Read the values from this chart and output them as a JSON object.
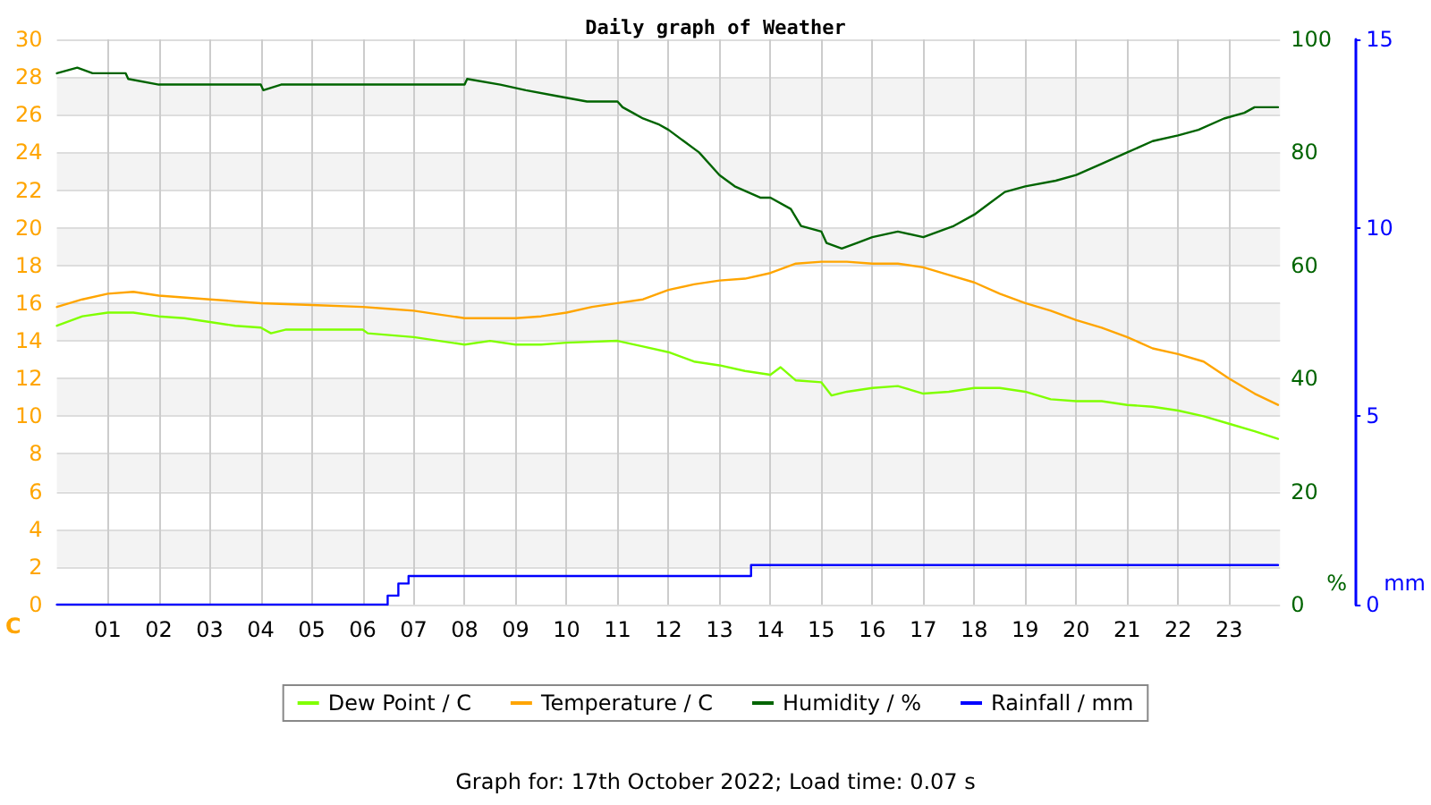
{
  "chart_data": {
    "type": "line",
    "title": "Daily graph of Weather",
    "ylabel": "C",
    "y2label": "%",
    "y3label": "mm",
    "annotations": [
      "Graph for: 17th October 2022; Load time: 0.07 s"
    ],
    "xlim": [
      0,
      24
    ],
    "xticks": [
      {
        "value": 1,
        "label": "01"
      },
      {
        "value": 2,
        "label": "02"
      },
      {
        "value": 3,
        "label": "03"
      },
      {
        "value": 4,
        "label": "04"
      },
      {
        "value": 5,
        "label": "05"
      },
      {
        "value": 6,
        "label": "06"
      },
      {
        "value": 7,
        "label": "07"
      },
      {
        "value": 8,
        "label": "08"
      },
      {
        "value": 9,
        "label": "09"
      },
      {
        "value": 10,
        "label": "10"
      },
      {
        "value": 11,
        "label": "11"
      },
      {
        "value": 12,
        "label": "12"
      },
      {
        "value": 13,
        "label": "13"
      },
      {
        "value": 14,
        "label": "14"
      },
      {
        "value": 15,
        "label": "15"
      },
      {
        "value": 16,
        "label": "16"
      },
      {
        "value": 17,
        "label": "17"
      },
      {
        "value": 18,
        "label": "18"
      },
      {
        "value": 19,
        "label": "19"
      },
      {
        "value": 20,
        "label": "20"
      },
      {
        "value": 21,
        "label": "21"
      },
      {
        "value": 22,
        "label": "22"
      },
      {
        "value": 23,
        "label": "23"
      }
    ],
    "ylim": [
      0,
      30
    ],
    "yticks": [
      0,
      2,
      4,
      6,
      8,
      10,
      12,
      14,
      16,
      18,
      20,
      22,
      24,
      26,
      28,
      30
    ],
    "y2lim": [
      0,
      100
    ],
    "y2ticks": [
      0,
      20,
      40,
      60,
      80,
      100
    ],
    "y3lim": [
      0,
      15
    ],
    "y3ticks": [
      0,
      5,
      10,
      15
    ],
    "grid": true,
    "legend": "bottom",
    "marker": "none",
    "line_style": "solid",
    "series": [
      {
        "name": "Dew Point / C",
        "color": "#80ff00",
        "x": [
          0,
          0.5,
          1,
          1.5,
          2,
          2.5,
          3,
          3.5,
          4,
          4.2,
          4.5,
          5,
          6,
          6.1,
          7,
          7.5,
          8,
          8.5,
          9,
          9.5,
          10,
          11,
          11.5,
          12,
          12.5,
          13,
          13.5,
          14,
          14.2,
          14.5,
          15,
          15.2,
          15.5,
          16,
          16.5,
          17,
          17.5,
          18,
          18.5,
          19,
          19.5,
          20,
          20.5,
          21,
          21.5,
          22,
          22.5,
          23,
          23.5,
          23.96
        ],
        "values": [
          14.8,
          15.3,
          15.5,
          15.5,
          15.3,
          15.2,
          15.0,
          14.8,
          14.7,
          14.4,
          14.6,
          14.6,
          14.6,
          14.4,
          14.2,
          14.0,
          13.8,
          14.0,
          13.8,
          13.8,
          13.9,
          14.0,
          13.7,
          13.4,
          12.9,
          12.7,
          12.4,
          12.2,
          12.6,
          11.9,
          11.8,
          11.1,
          11.3,
          11.5,
          11.6,
          11.2,
          11.3,
          11.5,
          11.5,
          11.3,
          10.9,
          10.8,
          10.8,
          10.6,
          10.5,
          10.3,
          10.0,
          9.6,
          9.2,
          8.8
        ]
      },
      {
        "name": "Temperature / C",
        "color": "#ffa500",
        "x": [
          0,
          0.5,
          1,
          1.5,
          2,
          3,
          3.5,
          4,
          5,
          6,
          6.5,
          7,
          7.5,
          8,
          8.5,
          9,
          9.5,
          10,
          10.5,
          11,
          11.5,
          12,
          12.5,
          13,
          13.5,
          14,
          14.5,
          15,
          15.5,
          16,
          16.5,
          17,
          17.5,
          18,
          18.5,
          19,
          19.5,
          20,
          20.5,
          21,
          21.5,
          22,
          22.5,
          23,
          23.5,
          23.96
        ],
        "values": [
          15.8,
          16.2,
          16.5,
          16.6,
          16.4,
          16.2,
          16.1,
          16.0,
          15.9,
          15.8,
          15.7,
          15.6,
          15.4,
          15.2,
          15.2,
          15.2,
          15.3,
          15.5,
          15.8,
          16.0,
          16.2,
          16.7,
          17.0,
          17.2,
          17.3,
          17.6,
          18.1,
          18.2,
          18.2,
          18.1,
          18.1,
          17.9,
          17.5,
          17.1,
          16.5,
          16.0,
          15.6,
          15.1,
          14.7,
          14.2,
          13.6,
          13.3,
          12.9,
          12.0,
          11.2,
          10.6
        ]
      },
      {
        "name": "Humidity / %",
        "color": "#006400",
        "axis": "y2",
        "x": [
          0,
          0.4,
          0.7,
          1.35,
          1.4,
          2,
          4,
          4.05,
          4.4,
          8,
          8.05,
          8.7,
          9.2,
          9.8,
          10.4,
          11,
          11.1,
          11.3,
          11.5,
          11.8,
          12,
          12.3,
          12.6,
          13,
          13.3,
          13.8,
          14,
          14.4,
          14.6,
          15,
          15.1,
          15.4,
          15.7,
          16,
          16.5,
          17,
          17.3,
          17.6,
          18,
          18.3,
          18.6,
          19,
          19.6,
          20,
          20.5,
          21,
          21.5,
          22,
          22.4,
          22.9,
          23.3,
          23.5,
          23.96
        ],
        "values": [
          94,
          95,
          94,
          94,
          93,
          92,
          92,
          91,
          92,
          92,
          93,
          92,
          91,
          90,
          89,
          89,
          88,
          87,
          86,
          85,
          84,
          82,
          80,
          76,
          74,
          72,
          72,
          70,
          67,
          66,
          64,
          63,
          64,
          65,
          66,
          65,
          66,
          67,
          69,
          71,
          73,
          74,
          75,
          76,
          78,
          80,
          82,
          83,
          84,
          86,
          87,
          88,
          88
        ]
      },
      {
        "name": "Rainfall / mm",
        "color": "#0000ff",
        "type": "step",
        "axis": "y3",
        "x": [
          0,
          6.49,
          6.7,
          6.9,
          13.62,
          23.96
        ],
        "values": [
          0,
          0.24,
          0.56,
          0.76,
          1.05,
          1.05
        ]
      }
    ]
  }
}
